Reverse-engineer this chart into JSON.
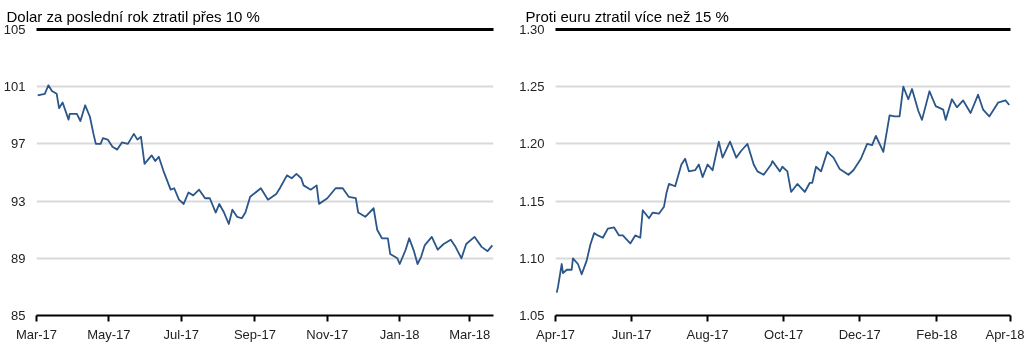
{
  "chart_data": [
    {
      "type": "line",
      "title": "Dolar za poslední rok ztratil přes 10 %",
      "grid": "y",
      "xlim": [
        "2017-03-01",
        "2018-03-21"
      ],
      "xticks": [
        {
          "value": "2017-03-01",
          "label": "Mar-17"
        },
        {
          "value": "2017-05-01",
          "label": "May-17"
        },
        {
          "value": "2017-07-01",
          "label": "Jul-17"
        },
        {
          "value": "2017-09-01",
          "label": "Sep-17"
        },
        {
          "value": "2017-11-01",
          "label": "Nov-17"
        },
        {
          "value": "2018-01-01",
          "label": "Jan-18"
        },
        {
          "value": "2018-03-01",
          "label": "Mar-18"
        }
      ],
      "ylim": [
        85,
        105
      ],
      "yticks": [
        85,
        89,
        93,
        97,
        101,
        105
      ],
      "series": [
        {
          "color": "#2b5689",
          "x": [
            "2017-03-02",
            "2017-03-08",
            "2017-03-11",
            "2017-03-14",
            "2017-03-18",
            "2017-03-20",
            "2017-03-23",
            "2017-03-28",
            "2017-03-29",
            "2017-04-04",
            "2017-04-07",
            "2017-04-11",
            "2017-04-15",
            "2017-04-18",
            "2017-04-20",
            "2017-04-24",
            "2017-04-26",
            "2017-04-30",
            "2017-05-04",
            "2017-05-08",
            "2017-05-12",
            "2017-05-17",
            "2017-05-22",
            "2017-05-25",
            "2017-05-28",
            "2017-05-31",
            "2017-06-06",
            "2017-06-09",
            "2017-06-12",
            "2017-06-16",
            "2017-06-22",
            "2017-06-25",
            "2017-06-29",
            "2017-07-03",
            "2017-07-07",
            "2017-07-11",
            "2017-07-16",
            "2017-07-21",
            "2017-07-25",
            "2017-07-30",
            "2017-08-02",
            "2017-08-06",
            "2017-08-10",
            "2017-08-13",
            "2017-08-17",
            "2017-08-21",
            "2017-08-24",
            "2017-08-28",
            "2017-09-06",
            "2017-09-12",
            "2017-09-19",
            "2017-09-22",
            "2017-09-28",
            "2017-10-02",
            "2017-10-06",
            "2017-10-10",
            "2017-10-12",
            "2017-10-18",
            "2017-10-23",
            "2017-10-25",
            "2017-11-01",
            "2017-11-08",
            "2017-11-14",
            "2017-11-19",
            "2017-11-25",
            "2017-11-27",
            "2017-12-03",
            "2017-12-10",
            "2017-12-13",
            "2017-12-17",
            "2017-12-22",
            "2017-12-24",
            "2017-12-30",
            "2018-01-01",
            "2018-01-06",
            "2018-01-09",
            "2018-01-13",
            "2018-01-16",
            "2018-01-19",
            "2018-01-22",
            "2018-01-28",
            "2018-02-02",
            "2018-02-07",
            "2018-02-13",
            "2018-02-17",
            "2018-02-22",
            "2018-02-26",
            "2018-03-05",
            "2018-03-11",
            "2018-03-16",
            "2018-03-20"
          ],
          "values": [
            100.4,
            100.5,
            101.1,
            100.7,
            100.5,
            99.5,
            99.9,
            98.7,
            99.1,
            99.1,
            98.6,
            99.7,
            98.9,
            97.7,
            97.0,
            97.0,
            97.4,
            97.3,
            96.8,
            96.6,
            97.1,
            97.0,
            97.7,
            97.3,
            97.5,
            95.6,
            96.2,
            95.8,
            96.1,
            95.1,
            93.8,
            93.9,
            93.1,
            92.8,
            93.6,
            93.4,
            93.8,
            93.2,
            93.2,
            92.2,
            92.8,
            92.2,
            91.4,
            92.4,
            91.9,
            91.8,
            92.2,
            93.3,
            93.9,
            93.1,
            93.5,
            93.9,
            94.8,
            94.6,
            94.9,
            94.6,
            94.1,
            93.8,
            94.1,
            92.8,
            93.2,
            93.9,
            93.9,
            93.3,
            93.2,
            92.2,
            91.9,
            92.5,
            91.0,
            90.4,
            90.4,
            89.3,
            89.0,
            88.6,
            89.6,
            90.4,
            89.5,
            88.6,
            89.1,
            89.9,
            90.5,
            89.6,
            90.0,
            90.3,
            89.8,
            89.0,
            90.0,
            90.5,
            89.8,
            89.5,
            89.9
          ]
        }
      ]
    },
    {
      "type": "line",
      "title": "Proti euru ztratil více než 15 %",
      "grid": "y",
      "xlim": [
        "2017-04-01",
        "2018-04-01"
      ],
      "xticks": [
        {
          "value": "2017-04-01",
          "label": "Apr-17"
        },
        {
          "value": "2017-06-01",
          "label": "Jun-17"
        },
        {
          "value": "2017-08-01",
          "label": "Aug-17"
        },
        {
          "value": "2017-10-01",
          "label": "Oct-17"
        },
        {
          "value": "2017-12-01",
          "label": "Dec-17"
        },
        {
          "value": "2018-02-01",
          "label": "Feb-18"
        },
        {
          "value": "2018-04-01",
          "label": "Apr-18"
        }
      ],
      "ylim": [
        1.05,
        1.3
      ],
      "yticks": [
        1.05,
        {
          "value": 1.1,
          "label": "1.10"
        },
        1.15,
        {
          "value": 1.2,
          "label": "1.20"
        },
        1.25,
        {
          "value": 1.3,
          "label": "1.30"
        }
      ],
      "series": [
        {
          "color": "#2b5689",
          "x": [
            "2017-04-02",
            "2017-04-03",
            "2017-04-06",
            "2017-04-07",
            "2017-04-10",
            "2017-04-14",
            "2017-04-15",
            "2017-04-19",
            "2017-04-22",
            "2017-04-26",
            "2017-04-29",
            "2017-05-02",
            "2017-05-05",
            "2017-05-09",
            "2017-05-13",
            "2017-05-18",
            "2017-05-22",
            "2017-05-25",
            "2017-05-31",
            "2017-06-04",
            "2017-06-08",
            "2017-06-10",
            "2017-06-15",
            "2017-06-18",
            "2017-06-23",
            "2017-06-27",
            "2017-06-29",
            "2017-07-01",
            "2017-07-06",
            "2017-07-11",
            "2017-07-14",
            "2017-07-17",
            "2017-07-22",
            "2017-07-25",
            "2017-07-28",
            "2017-08-01",
            "2017-08-05",
            "2017-08-10",
            "2017-08-13",
            "2017-08-19",
            "2017-08-24",
            "2017-08-28",
            "2017-09-02",
            "2017-09-07",
            "2017-09-10",
            "2017-09-15",
            "2017-09-21",
            "2017-09-22",
            "2017-09-28",
            "2017-09-30",
            "2017-10-04",
            "2017-10-07",
            "2017-10-12",
            "2017-10-18",
            "2017-10-22",
            "2017-10-24",
            "2017-10-27",
            "2017-10-31",
            "2017-11-05",
            "2017-11-10",
            "2017-11-15",
            "2017-11-22",
            "2017-11-26",
            "2017-12-02",
            "2017-12-07",
            "2017-12-11",
            "2017-12-14",
            "2017-12-20",
            "2017-12-25",
            "2017-12-29",
            "2018-01-02",
            "2018-01-05",
            "2018-01-09",
            "2018-01-12",
            "2018-01-17",
            "2018-01-20",
            "2018-01-26",
            "2018-01-31",
            "2018-02-06",
            "2018-02-08",
            "2018-02-13",
            "2018-02-17",
            "2018-02-22",
            "2018-02-28",
            "2018-03-06",
            "2018-03-10",
            "2018-03-15",
            "2018-03-22",
            "2018-03-28",
            "2018-03-31"
          ],
          "values": [
            1.07,
            1.075,
            1.095,
            1.087,
            1.09,
            1.09,
            1.1,
            1.095,
            1.086,
            1.098,
            1.112,
            1.122,
            1.12,
            1.118,
            1.126,
            1.127,
            1.12,
            1.12,
            1.113,
            1.12,
            1.118,
            1.142,
            1.135,
            1.14,
            1.139,
            1.145,
            1.157,
            1.165,
            1.163,
            1.182,
            1.187,
            1.176,
            1.177,
            1.182,
            1.171,
            1.182,
            1.177,
            1.202,
            1.188,
            1.202,
            1.188,
            1.194,
            1.2,
            1.182,
            1.176,
            1.173,
            1.182,
            1.185,
            1.176,
            1.18,
            1.176,
            1.158,
            1.165,
            1.158,
            1.166,
            1.166,
            1.18,
            1.176,
            1.193,
            1.188,
            1.178,
            1.173,
            1.177,
            1.187,
            1.2,
            1.199,
            1.207,
            1.193,
            1.225,
            1.224,
            1.224,
            1.25,
            1.239,
            1.248,
            1.229,
            1.221,
            1.246,
            1.233,
            1.23,
            1.221,
            1.239,
            1.232,
            1.238,
            1.227,
            1.243,
            1.23,
            1.224,
            1.236,
            1.238,
            1.234
          ]
        }
      ]
    }
  ]
}
